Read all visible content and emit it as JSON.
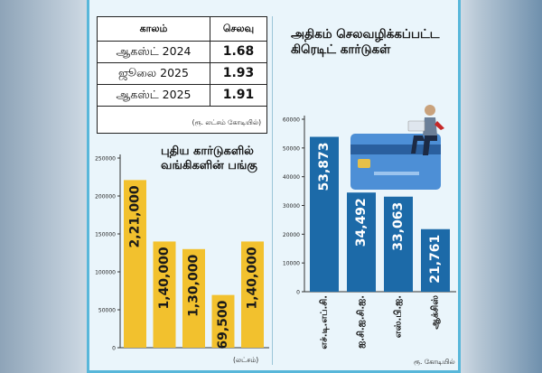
{
  "table": {
    "headers": [
      "காலம்",
      "செலவு"
    ],
    "rows": [
      {
        "period": "ஆகஸ்ட் 2024",
        "value": "1.68"
      },
      {
        "period": "ஜூலை 2025",
        "value": "1.93"
      },
      {
        "period": "ஆகஸ்ட் 2025",
        "value": "1.91"
      }
    ],
    "unit_note": "(ரூ. லட்சம் கோடியில்)"
  },
  "chart_data": [
    {
      "type": "bar",
      "title": "புதிய கார்டுகளில் வங்கிகளின் பங்கு",
      "categories": [
        "",
        "",
        "",
        "",
        ""
      ],
      "values": [
        221000,
        140000,
        130000,
        69500,
        140000
      ],
      "data_labels": [
        "2,21,000",
        "1,40,000",
        "1,30,000",
        "69,500",
        "1,40,000"
      ],
      "yticks": [
        0,
        50000,
        100000,
        150000,
        200000,
        250000
      ],
      "ylim": [
        0,
        250000
      ],
      "unit_note": "(லட்சம்)",
      "bar_color": "#f2c12e"
    },
    {
      "type": "bar",
      "title": "அதிகம் செலவழிக்கப்பட்ட கிரெடிட் கார்டுகள்",
      "categories": [
        "எச்.டி.எப்.சி.",
        "ஐ.சி.ஐ.சி.ஐ.",
        "எஸ்.பி.ஐ.",
        "ஆக்சிஸ்"
      ],
      "values": [
        53873,
        34492,
        33063,
        21761
      ],
      "data_labels": [
        "53,873",
        "34,492",
        "33,063",
        "21,761"
      ],
      "yticks": [
        0,
        10000,
        20000,
        30000,
        40000,
        50000,
        60000
      ],
      "ylim": [
        0,
        60000
      ],
      "unit_note": "ரூ. கோடியில்",
      "bar_color": "#1c6aa8"
    }
  ]
}
